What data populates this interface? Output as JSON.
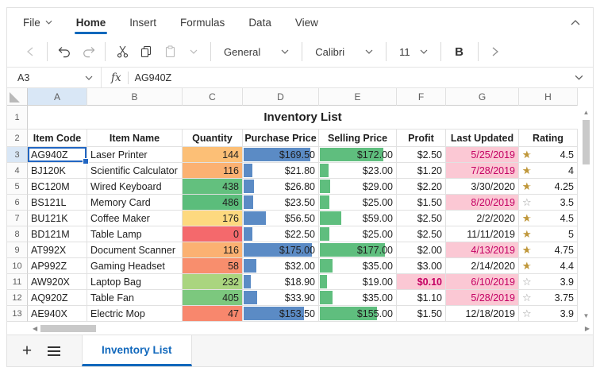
{
  "colors": {
    "accent": "#1168bc",
    "selection": "#2166c2",
    "bar_blue": "#5b8bc5",
    "bar_green": "#5fbe7e",
    "alert_bg": "#fbc8d4",
    "alert_text": "#c40063",
    "star_gold": "#c0983c"
  },
  "menu": {
    "items": [
      {
        "label": "File",
        "dropdown": true
      },
      {
        "label": "Home",
        "active": true
      },
      {
        "label": "Insert"
      },
      {
        "label": "Formulas"
      },
      {
        "label": "Data"
      },
      {
        "label": "View"
      }
    ]
  },
  "toolbar": {
    "number_format": "General",
    "font_name": "Calibri",
    "font_size": "11",
    "bold_label": "B"
  },
  "formula_bar": {
    "name_box": "A3",
    "fx_label": "fx",
    "value": "AG940Z"
  },
  "grid": {
    "column_letters": [
      "A",
      "B",
      "C",
      "D",
      "E",
      "F",
      "G",
      "H"
    ],
    "title": "Inventory List",
    "headers": [
      "Item Code",
      "Item Name",
      "Quantity",
      "Purchase Price",
      "Selling Price",
      "Profit",
      "Last Updated",
      "Rating"
    ],
    "selection": {
      "column": "A",
      "row": "3"
    },
    "rows": [
      {
        "row": "3",
        "code": "AG940Z",
        "name": "Laser Printer",
        "qty": "144",
        "qty_bg": "#fcbf76",
        "purchase": "$169.50",
        "purchase_value": 169.5,
        "selling": "$172.00",
        "selling_value": 172,
        "profit": "$2.50",
        "profit_alert": false,
        "date": "5/25/2019",
        "date_alert": true,
        "star": "half",
        "rating": "4.5"
      },
      {
        "row": "4",
        "code": "BJ120K",
        "name": "Scientific Calculator",
        "qty": "116",
        "qty_bg": "#fbb172",
        "purchase": "$21.80",
        "purchase_value": 21.8,
        "selling": "$23.00",
        "selling_value": 23,
        "profit": "$1.20",
        "profit_alert": false,
        "date": "7/28/2019",
        "date_alert": true,
        "star": "half",
        "rating": "4"
      },
      {
        "row": "5",
        "code": "BC120M",
        "name": "Wired Keyboard",
        "qty": "438",
        "qty_bg": "#63c07e",
        "purchase": "$26.80",
        "purchase_value": 26.8,
        "selling": "$29.00",
        "selling_value": 29,
        "profit": "$2.20",
        "profit_alert": false,
        "date": "3/30/2020",
        "date_alert": false,
        "star": "half",
        "rating": "4.25"
      },
      {
        "row": "6",
        "code": "BS121L",
        "name": "Memory Card",
        "qty": "486",
        "qty_bg": "#5bbd7b",
        "purchase": "$23.50",
        "purchase_value": 23.5,
        "selling": "$25.00",
        "selling_value": 25,
        "profit": "$1.50",
        "profit_alert": false,
        "date": "8/20/2019",
        "date_alert": true,
        "star": "empty",
        "rating": "3.5"
      },
      {
        "row": "7",
        "code": "BU121K",
        "name": "Coffee Maker",
        "qty": "176",
        "qty_bg": "#fdd97f",
        "purchase": "$56.50",
        "purchase_value": 56.5,
        "selling": "$59.00",
        "selling_value": 59,
        "profit": "$2.50",
        "profit_alert": false,
        "date": "2/2/2020",
        "date_alert": false,
        "star": "half",
        "rating": "4.5"
      },
      {
        "row": "8",
        "code": "BD121M",
        "name": "Table Lamp",
        "qty": "0",
        "qty_bg": "#f4696c",
        "purchase": "$22.50",
        "purchase_value": 22.5,
        "selling": "$25.00",
        "selling_value": 25,
        "profit": "$2.50",
        "profit_alert": false,
        "date": "11/11/2019",
        "date_alert": false,
        "star": "full",
        "rating": "5"
      },
      {
        "row": "9",
        "code": "AT992X",
        "name": "Document Scanner",
        "qty": "116",
        "qty_bg": "#fbb172",
        "purchase": "$175.00",
        "purchase_value": 175,
        "selling": "$177.00",
        "selling_value": 177,
        "profit": "$2.00",
        "profit_alert": false,
        "date": "4/13/2019",
        "date_alert": true,
        "star": "half",
        "rating": "4.75"
      },
      {
        "row": "10",
        "code": "AP992Z",
        "name": "Gaming Headset",
        "qty": "58",
        "qty_bg": "#f88e6d",
        "purchase": "$32.00",
        "purchase_value": 32,
        "selling": "$35.00",
        "selling_value": 35,
        "profit": "$3.00",
        "profit_alert": false,
        "date": "2/14/2020",
        "date_alert": false,
        "star": "half",
        "rating": "4.4"
      },
      {
        "row": "11",
        "code": "AW920X",
        "name": "Laptop Bag",
        "qty": "232",
        "qty_bg": "#aad57f",
        "purchase": "$18.90",
        "purchase_value": 18.9,
        "selling": "$19.00",
        "selling_value": 19,
        "profit": "$0.10",
        "profit_alert": true,
        "date": "6/10/2019",
        "date_alert": true,
        "star": "empty",
        "rating": "3.9"
      },
      {
        "row": "12",
        "code": "AQ920Z",
        "name": "Table Fan",
        "qty": "405",
        "qty_bg": "#7cc87e",
        "purchase": "$33.90",
        "purchase_value": 33.9,
        "selling": "$35.00",
        "selling_value": 35,
        "profit": "$1.10",
        "profit_alert": false,
        "date": "5/28/2019",
        "date_alert": true,
        "star": "empty",
        "rating": "3.75"
      },
      {
        "row": "13",
        "code": "AE940X",
        "name": "Electric Mop",
        "qty": "47",
        "qty_bg": "#f8876d",
        "purchase": "$153.50",
        "purchase_value": 153.5,
        "selling": "$155.00",
        "selling_value": 155,
        "profit": "$1.50",
        "profit_alert": false,
        "date": "12/18/2019",
        "date_alert": false,
        "star": "empty",
        "rating": "3.9"
      }
    ]
  },
  "sheet_bar": {
    "active_tab": "Inventory List"
  }
}
